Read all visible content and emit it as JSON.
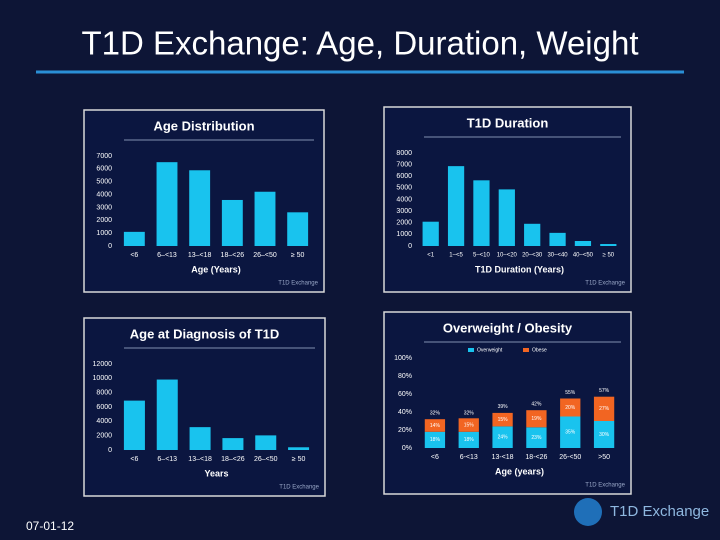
{
  "title": "T1D Exchange: Age, Duration, Weight",
  "date": "07-01-12",
  "logo": "T1D Exchange",
  "chart_data": [
    {
      "type": "bar",
      "title": "Age Distribution",
      "x_label": "Age (Years)",
      "watermark": "T1D Exchange",
      "categories": [
        "<6",
        "6–<13",
        "13–<18",
        "18–<26",
        "26–<50",
        "≥ 50"
      ],
      "values": [
        1100,
        6520,
        5890,
        3580,
        4220,
        2620
      ],
      "color": "#19c3ee",
      "ylim": [
        0,
        7000
      ],
      "yticks": [
        0,
        1000,
        2000,
        3000,
        4000,
        5000,
        6000,
        7000
      ]
    },
    {
      "type": "bar",
      "title": "T1D Duration",
      "x_label": "T1D Duration (Years)",
      "watermark": "T1D Exchange",
      "categories": [
        "<1",
        "1–<5",
        "5–<10",
        "10–<20",
        "20–<30",
        "30–<40",
        "40–<50",
        "≥ 50"
      ],
      "values": [
        2090,
        6870,
        5650,
        4870,
        1910,
        1130,
        430,
        170
      ],
      "color": "#19c3ee",
      "ylim": [
        0,
        8000
      ],
      "yticks": [
        0,
        1000,
        2000,
        3000,
        4000,
        5000,
        6000,
        7000,
        8000
      ]
    },
    {
      "type": "bar",
      "title": "Age at Diagnosis of T1D",
      "x_label": "Years",
      "watermark": "T1D Exchange",
      "categories": [
        "<6",
        "6–<13",
        "13–<18",
        "18–<26",
        "26–<50",
        "≥ 50"
      ],
      "values": [
        6890,
        9830,
        3190,
        1660,
        2040,
        380
      ],
      "color": "#19c3ee",
      "ylim": [
        0,
        12000
      ],
      "yticks": [
        0,
        2000,
        4000,
        6000,
        8000,
        10000,
        12000
      ]
    },
    {
      "type": "stacked_bar",
      "title": "Overweight / Obesity",
      "x_label": "Age (years)",
      "watermark": "T1D Exchange",
      "categories": [
        "<6",
        "6-<13",
        "13-<18",
        "18-<26",
        "26-<50",
        ">50"
      ],
      "series": [
        {
          "name": "Overweight",
          "color": "#19c3ee",
          "values": [
            18,
            18,
            24,
            23,
            35,
            30
          ],
          "value_labels": [
            "18%",
            "18%",
            "24%",
            "23%",
            "35%",
            "30%"
          ]
        },
        {
          "name": "Obese",
          "color": "#f26522",
          "values": [
            14,
            15,
            15,
            19,
            20,
            27
          ],
          "value_labels": [
            "14%",
            "15%",
            "15%",
            "19%",
            "20%",
            "27%"
          ]
        }
      ],
      "totals": [
        32,
        32,
        39,
        42,
        55,
        57
      ],
      "total_labels": [
        "32%",
        "32%",
        "39%",
        "42%",
        "55%",
        "57%"
      ],
      "ylim": [
        0,
        100
      ],
      "yticks": [
        {
          "value": 0,
          "label": "0%"
        },
        {
          "value": 20,
          "label": "20%"
        },
        {
          "value": 40,
          "label": "40%"
        },
        {
          "value": 60,
          "label": "60%"
        },
        {
          "value": 80,
          "label": "80%"
        },
        {
          "value": 100,
          "label": "100%"
        }
      ]
    }
  ]
}
